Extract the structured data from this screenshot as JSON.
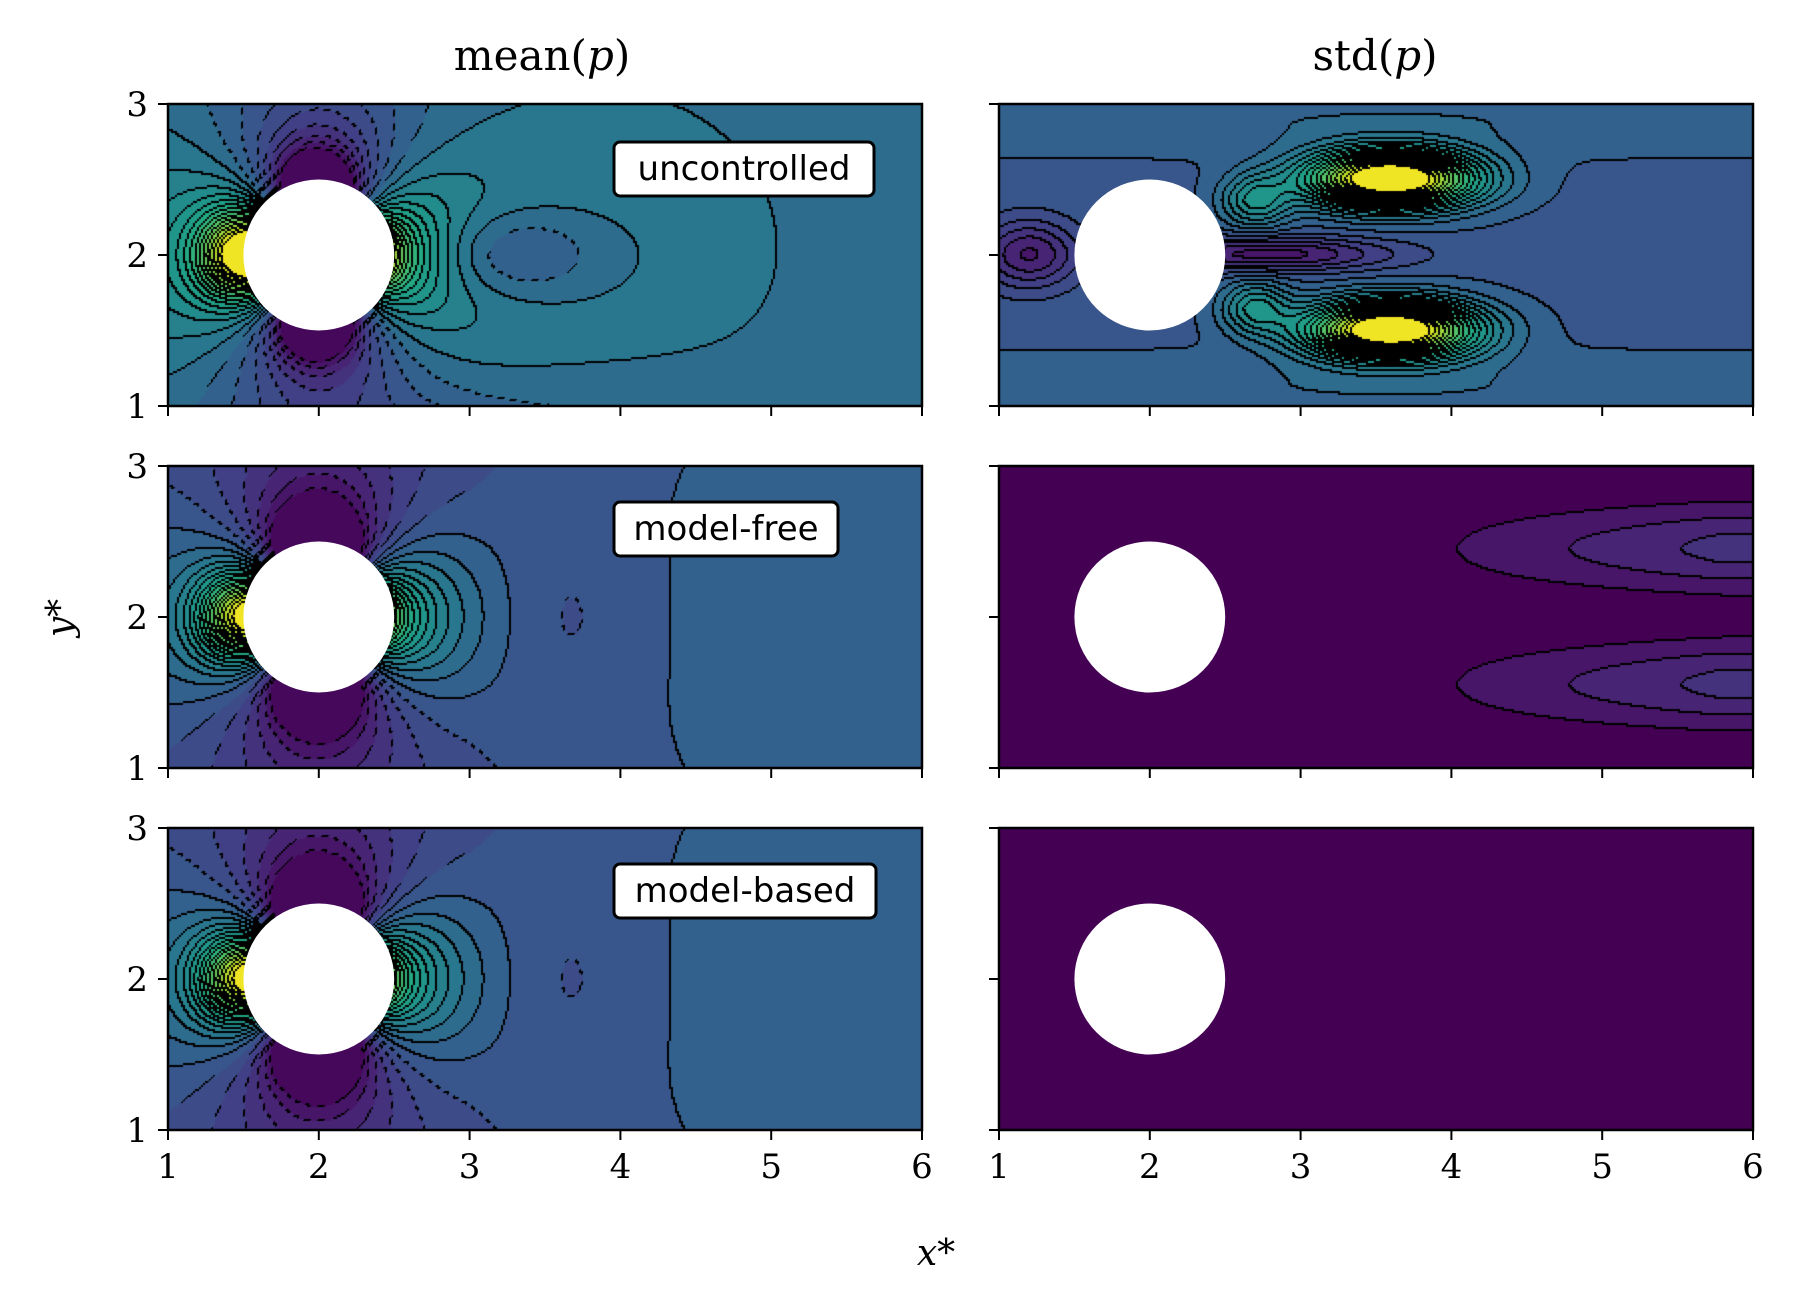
{
  "chart_data": {
    "type": "heatmap",
    "columns": [
      {
        "key": "mean",
        "title_func": "mean",
        "title_var": "p"
      },
      {
        "key": "std",
        "title_func": "std",
        "title_var": "p"
      }
    ],
    "rows": [
      {
        "key": "uncontrolled",
        "label": "uncontrolled"
      },
      {
        "key": "model_free",
        "label": "model-free"
      },
      {
        "key": "model_based",
        "label": "model-based"
      }
    ],
    "xlabel": "x*",
    "ylabel": "y*",
    "xlim": [
      1,
      6
    ],
    "ylim": [
      1,
      3
    ],
    "xticks": [
      "1",
      "2",
      "3",
      "4",
      "5",
      "6"
    ],
    "yticks": [
      "1",
      "2",
      "3"
    ],
    "colormap": "viridis",
    "obstacle": {
      "shape": "circle",
      "center": [
        2,
        2
      ],
      "radius": 0.5
    },
    "contour_styles": {
      "negative": "dashed",
      "positive": "solid"
    },
    "panels": [
      {
        "row": "uncontrolled",
        "column": "mean",
        "stagnation_peak": [
          1.42,
          2.0
        ],
        "wake_min": [
          3.2,
          2.0
        ],
        "wake_min_extent": [
          [
            2.9,
            3.7
          ],
          [
            1.75,
            2.3
          ]
        ],
        "background_level": 0.36
      },
      {
        "row": "uncontrolled",
        "column": "std",
        "peaks": [
          [
            3.6,
            2.5
          ],
          [
            3.6,
            1.5
          ]
        ],
        "peak_extent_x": [
          2.7,
          4.6
        ],
        "peak_halfwidth_y": 0.33,
        "background_level": 0.3
      },
      {
        "row": "model_free",
        "column": "mean",
        "stagnation_peak": [
          1.42,
          2.0
        ],
        "wake_min_extent": [
          [
            3.0,
            4.4
          ],
          [
            1.3,
            2.6
          ]
        ],
        "background_level": 0.24
      },
      {
        "row": "model_free",
        "column": "std",
        "peaks": [
          [
            5.5,
            2.45
          ],
          [
            5.5,
            1.55
          ]
        ],
        "max_level": 0.14,
        "background_level": 0.0
      },
      {
        "row": "model_based",
        "column": "mean",
        "stagnation_peak": [
          1.42,
          2.0
        ],
        "wake_min_extent": [
          [
            3.0,
            4.1
          ],
          [
            1.3,
            2.6
          ]
        ],
        "background_level": 0.24
      },
      {
        "row": "model_based",
        "column": "std",
        "uniform": true,
        "background_level": 0.0
      }
    ]
  }
}
